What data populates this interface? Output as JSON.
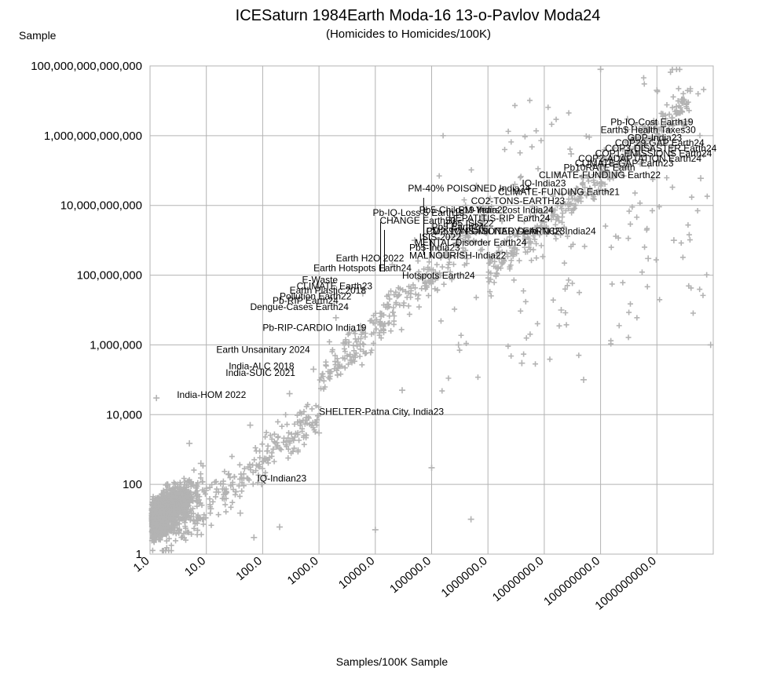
{
  "chart_data": {
    "type": "scatter",
    "title": "ICESaturn 1984Earth Moda-16 13-o-Pavlov Moda24",
    "subtitle": "(Homicides to Homicides/100K)",
    "xlabel": "Samples/100K Sample",
    "ylabel": "Sample",
    "x_scale": "log",
    "y_scale": "log",
    "xlim": [
      1,
      10000000000
    ],
    "ylim": [
      1,
      100000000000000
    ],
    "grid": true,
    "marker": "plus",
    "marker_color": "#b3b3b3",
    "x_tick_labels": [
      "1.0",
      "10.0",
      "100.0",
      "1000.0",
      "10000.0",
      "100000.0",
      "1000000.0",
      "10000000.0",
      "100000000.0",
      "1000000000.0"
    ],
    "y_tick_labels": [
      "1",
      "100",
      "10,000",
      "1,000,000",
      "100,000,000",
      "10,000,000,000",
      "1,000,000,000,000",
      "100,000,000,000,000"
    ],
    "x_tick_values": [
      1,
      10,
      100,
      1000,
      10000,
      100000,
      1000000,
      10000000,
      100000000,
      1000000000
    ],
    "y_tick_values": [
      1,
      100,
      10000,
      1000000,
      100000000,
      10000000000,
      1000000000000,
      100000000000000
    ],
    "points": [
      {
        "x": 70,
        "y": 3,
        "label": ""
      },
      {
        "x": 1.3,
        "y": 30000,
        "label": ""
      },
      {
        "x": 3,
        "y": 8,
        "label": ""
      },
      {
        "x": 25,
        "y": 200,
        "label": ""
      },
      {
        "x": 120,
        "y": 900,
        "label": ""
      },
      {
        "x": 15,
        "y": 60,
        "label": ""
      },
      {
        "x": 40,
        "y": 15,
        "label": ""
      },
      {
        "x": 300,
        "y": 40000,
        "label": ""
      },
      {
        "x": 5,
        "y": 1500,
        "label": ""
      },
      {
        "x": 800,
        "y": 200000,
        "label": ""
      },
      {
        "x": 2000,
        "y": 6000000,
        "label": ""
      },
      {
        "x": 6000,
        "y": 30000000,
        "label": ""
      },
      {
        "x": 20000,
        "y": 200000000,
        "label": ""
      },
      {
        "x": 50000,
        "y": 1000000000,
        "label": ""
      },
      {
        "x": 150000,
        "y": 2000000000,
        "label": ""
      },
      {
        "x": 400000,
        "y": 10000000000,
        "label": ""
      },
      {
        "x": 3000000,
        "y": 40000000000,
        "label": ""
      },
      {
        "x": 30000000,
        "y": 300000000000,
        "label": ""
      },
      {
        "x": 300000000,
        "y": 3000000000000,
        "label": ""
      },
      {
        "x": 1000000000,
        "y": 20000000000000,
        "label": ""
      },
      {
        "x": 100000000,
        "y": 80000000000000,
        "label": ""
      },
      {
        "x": 9000000000,
        "y": 1000000,
        "label": ""
      },
      {
        "x": 2000000000,
        "y": 1000000000,
        "label": ""
      },
      {
        "x": 50000000,
        "y": 100000,
        "label": ""
      },
      {
        "x": 500000,
        "y": 10,
        "label": ""
      },
      {
        "x": 100000,
        "y": 300,
        "label": ""
      },
      {
        "x": 10000,
        "y": 5,
        "label": ""
      },
      {
        "x": 300000,
        "y": 1000000,
        "label": ""
      },
      {
        "x": 1.5,
        "y": 3,
        "label": ""
      },
      {
        "x": 8,
        "y": 400,
        "label": ""
      },
      {
        "x": 200,
        "y": 6,
        "label": ""
      },
      {
        "x": 60,
        "y": 5000,
        "label": ""
      },
      {
        "x": 1000,
        "y": 3000,
        "label": ""
      },
      {
        "x": 30000,
        "y": 50000,
        "label": ""
      },
      {
        "x": 4000000,
        "y": 300000,
        "label": ""
      },
      {
        "x": 20000000,
        "y": 10000000,
        "label": ""
      },
      {
        "x": 700000000,
        "y": 300000000,
        "label": ""
      },
      {
        "x": 6000000000,
        "y": 60000000000,
        "label": ""
      },
      {
        "x": 12,
        "y": 20,
        "label": ""
      },
      {
        "x": 2,
        "y": 100,
        "label": ""
      }
    ],
    "annotations": [
      {
        "text": "PM-40% POISONED India24",
        "x": 38000,
        "y": 25000000000
      },
      {
        "text": "Pb5-Child-19 India22",
        "x": 60000,
        "y": 6000000000
      },
      {
        "text": "PM-69% POISONED Delhi-NCR India24",
        "x": 80000,
        "y": 1500000000
      },
      {
        "text": "Pb-IQ-Cost Earth19",
        "x": 150000000,
        "y": 2000000000000
      },
      {
        "text": "Earth$ Health Taxes30",
        "x": 100000000,
        "y": 1200000000000
      },
      {
        "text": "GDP-India23",
        "x": 300000000,
        "y": 700000000000
      },
      {
        "text": "COP29-GAP Earth24",
        "x": 180000000,
        "y": 500000000000
      },
      {
        "text": "COP3-DISASTER Earth24",
        "x": 120000000,
        "y": 350000000000
      },
      {
        "text": "COP1-EMISSIONS Earth24",
        "x": 80000000,
        "y": 250000000000
      },
      {
        "text": "COP2-ADAPTATION Earth24",
        "x": 40000000,
        "y": 180000000000
      },
      {
        "text": "CLIMATE-GAP Earth23",
        "x": 35000000,
        "y": 130000000000
      },
      {
        "text": "Pb10RATE Earth",
        "x": 22000000,
        "y": 100000000000
      },
      {
        "text": "CLIMATE-FUNDING Earth22",
        "x": 8000000,
        "y": 60000000000
      },
      {
        "text": "IQ-India23",
        "x": 4000000,
        "y": 35000000000
      },
      {
        "text": "CLIMATE-FUNDING Earth21",
        "x": 1500000,
        "y": 20000000000
      },
      {
        "text": "CO2-TONS-EARTH23",
        "x": 500000,
        "y": 11000000000
      },
      {
        "text": "PM-Years Lost India24",
        "x": 300000,
        "y": 6000000000
      },
      {
        "text": "HEPATITIS-RIP Earth24",
        "x": 200000,
        "y": 3500000000
      },
      {
        "text": "Pb5 ISIS22",
        "x": 180000,
        "y": 2500000000
      },
      {
        "text": "Pb5 Earth24",
        "x": 100000,
        "y": 2000000000
      },
      {
        "text": "CO2-TONS-MILITARY-EARTH23",
        "x": 80000,
        "y": 1500000000
      },
      {
        "text": "ISIS-2022",
        "x": 60000,
        "y": 1000000000
      },
      {
        "text": "MENTAL-Disorder Earth24",
        "x": 50000,
        "y": 700000000
      },
      {
        "text": "Pb-IQ-Loss-5 Earth19",
        "x": 9000,
        "y": 5000000000
      },
      {
        "text": "CHANGE Earth50",
        "x": 12000,
        "y": 3000000000
      },
      {
        "text": "Pb5-India23",
        "x": 40000,
        "y": 500000000
      },
      {
        "text": "MALNOURISH-India22",
        "x": 40000,
        "y": 300000000
      },
      {
        "text": "Earth H2O 2022",
        "x": 2000,
        "y": 250000000
      },
      {
        "text": "Earth Hotspots Earth24",
        "x": 800,
        "y": 130000000
      },
      {
        "text": "Hotspots Earth24",
        "x": 30000,
        "y": 80000000
      },
      {
        "text": "E-Waste",
        "x": 500,
        "y": 60000000
      },
      {
        "text": "CLIMATE Earth23",
        "x": 400,
        "y": 40000000
      },
      {
        "text": "Earth Plastic 2018",
        "x": 300,
        "y": 30000000
      },
      {
        "text": "Pollution Earth22",
        "x": 200,
        "y": 20000000
      },
      {
        "text": "Pb-RIP Earth24",
        "x": 150,
        "y": 15000000
      },
      {
        "text": "Dengue-Cases Earth24",
        "x": 60,
        "y": 10000000
      },
      {
        "text": "Pb-RIP-CARDIO India19",
        "x": 100,
        "y": 2500000
      },
      {
        "text": "Earth Unsanitary 2024",
        "x": 15,
        "y": 600000
      },
      {
        "text": "India-ALC 2018",
        "x": 25,
        "y": 200000
      },
      {
        "text": "India-SUIC 2021",
        "x": 22,
        "y": 130000
      },
      {
        "text": "India-HOM 2022",
        "x": 3,
        "y": 30000
      },
      {
        "text": "SHELTER-Patna City, India23",
        "x": 1000,
        "y": 10000
      },
      {
        "text": "IQ-Indian23",
        "x": 80,
        "y": 120
      }
    ]
  }
}
